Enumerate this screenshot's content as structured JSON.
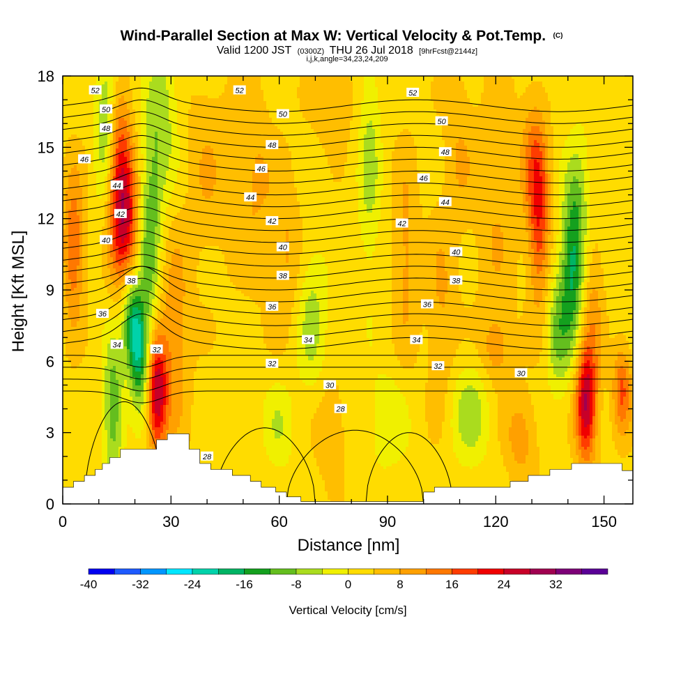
{
  "titles": {
    "main": "Wind-Parallel Section at Max W: Vertical Velocity & Pot.Temp.",
    "copyright": "(C)",
    "valid_a": "Valid 1200 JST",
    "valid_b": "(0300Z)",
    "valid_c": "THU 26 Jul 2018",
    "valid_d": "[9hrFcst@2144z]",
    "ijk": "i,j,k,angle=34,23,24,209"
  },
  "chart_data": {
    "type": "heatmap",
    "xlabel": "Distance [nm]",
    "ylabel": "Height [Kft MSL]",
    "xlim": [
      0,
      158
    ],
    "ylim": [
      0,
      18
    ],
    "xticks": [
      "0",
      "30",
      "60",
      "90",
      "120",
      "150"
    ],
    "yticks": [
      "0",
      "3",
      "6",
      "9",
      "12",
      "15",
      "18"
    ],
    "colorbar": {
      "label": "Vertical Velocity [cm/s]",
      "ticks": [
        "-40",
        "-32",
        "-24",
        "-16",
        "-8",
        "0",
        "8",
        "16",
        "24",
        "32"
      ],
      "levels": [
        -40,
        -36,
        -32,
        -28,
        -24,
        -20,
        -16,
        -12,
        -8,
        -4,
        0,
        4,
        8,
        12,
        16,
        20,
        24,
        28,
        32,
        36,
        40
      ],
      "colors": [
        "#0000f0",
        "#1e5aff",
        "#0096ff",
        "#00e6ff",
        "#00d2aa",
        "#00b464",
        "#14a01e",
        "#64be1e",
        "#aadc1e",
        "#f0f000",
        "#ffdc00",
        "#ffbe00",
        "#ffa000",
        "#ff7800",
        "#ff3c00",
        "#f00000",
        "#c80028",
        "#a00050",
        "#7d0078",
        "#5a0096"
      ]
    },
    "terrain_height_kft": [
      [
        0,
        0.7
      ],
      [
        3,
        0.7
      ],
      [
        3,
        0.95
      ],
      [
        6,
        0.95
      ],
      [
        6,
        1.2
      ],
      [
        9,
        1.2
      ],
      [
        9,
        1.45
      ],
      [
        11,
        1.45
      ],
      [
        11,
        1.7
      ],
      [
        13,
        1.7
      ],
      [
        13,
        1.95
      ],
      [
        16,
        1.95
      ],
      [
        16,
        2.3
      ],
      [
        26,
        2.3
      ],
      [
        26,
        2.7
      ],
      [
        29,
        2.7
      ],
      [
        29,
        2.95
      ],
      [
        35,
        2.95
      ],
      [
        35,
        2.3
      ],
      [
        38,
        2.3
      ],
      [
        38,
        1.7
      ],
      [
        41,
        1.7
      ],
      [
        41,
        1.45
      ],
      [
        47,
        1.45
      ],
      [
        47,
        1.2
      ],
      [
        52,
        1.2
      ],
      [
        52,
        0.95
      ],
      [
        55,
        0.95
      ],
      [
        55,
        0.7
      ],
      [
        59,
        0.7
      ],
      [
        59,
        0.5
      ],
      [
        62,
        0.5
      ],
      [
        62,
        0.3
      ],
      [
        66,
        0.3
      ],
      [
        66,
        0.1
      ],
      [
        100,
        0.1
      ],
      [
        100,
        0.5
      ],
      [
        103,
        0.5
      ],
      [
        103,
        0.7
      ],
      [
        124,
        0.7
      ],
      [
        124,
        0.95
      ],
      [
        129,
        0.95
      ],
      [
        129,
        1.2
      ],
      [
        135,
        1.2
      ],
      [
        135,
        1.45
      ],
      [
        141,
        1.45
      ],
      [
        141,
        1.7
      ],
      [
        155,
        1.7
      ],
      [
        155,
        1.4
      ],
      [
        158,
        1.4
      ]
    ],
    "w_features": [
      {
        "x": 17,
        "y": 11.5,
        "sx": 3,
        "sy": 2.2,
        "w": 22,
        "rot": 18
      },
      {
        "x": 16,
        "y": 14.5,
        "sx": 2.5,
        "sy": 2.0,
        "w": 12,
        "rot": 15
      },
      {
        "x": 3,
        "y": 10.8,
        "sx": 2,
        "sy": 2.2,
        "w": 14,
        "rot": 0
      },
      {
        "x": 12,
        "y": 16,
        "sx": 2,
        "sy": 2.5,
        "w": -12,
        "rot": 20
      },
      {
        "x": 20,
        "y": 7.2,
        "sx": 2.6,
        "sy": 1.6,
        "w": -27,
        "rot": 30
      },
      {
        "x": 24,
        "y": 11,
        "sx": 2.3,
        "sy": 3.5,
        "w": -14,
        "rot": 12
      },
      {
        "x": 14,
        "y": 4,
        "sx": 2,
        "sy": 2.2,
        "w": -14,
        "rot": 0
      },
      {
        "x": 26,
        "y": 4.7,
        "sx": 2,
        "sy": 1.7,
        "w": 26,
        "rot": 0
      },
      {
        "x": 31,
        "y": 7,
        "sx": 3,
        "sy": 3,
        "w": 9,
        "rot": 0
      },
      {
        "x": 28,
        "y": 16.5,
        "sx": 3,
        "sy": 2.5,
        "w": -8,
        "rot": 10
      },
      {
        "x": 85,
        "y": 14.5,
        "sx": 2.2,
        "sy": 3.6,
        "w": -8,
        "rot": 0
      },
      {
        "x": 69,
        "y": 7.8,
        "sx": 3,
        "sy": 2.2,
        "w": -8,
        "rot": 0
      },
      {
        "x": 53,
        "y": 13.5,
        "sx": 4,
        "sy": 3,
        "w": 6,
        "rot": 0
      },
      {
        "x": 40,
        "y": 14,
        "sx": 4,
        "sy": 3,
        "w": 5,
        "rot": 0
      },
      {
        "x": 62,
        "y": 10.5,
        "sx": 3,
        "sy": 2.5,
        "w": 6,
        "rot": 0
      },
      {
        "x": 95,
        "y": 10.5,
        "sx": 2.5,
        "sy": 3,
        "w": 7,
        "rot": 0
      },
      {
        "x": 105,
        "y": 8,
        "sx": 3,
        "sy": 3,
        "w": 6,
        "rot": 0
      },
      {
        "x": 120,
        "y": 12,
        "sx": 4,
        "sy": 4,
        "w": 5,
        "rot": 0
      },
      {
        "x": 113,
        "y": 3.8,
        "sx": 4,
        "sy": 1.5,
        "w": -9,
        "rot": 0
      },
      {
        "x": 127,
        "y": 2.8,
        "sx": 3,
        "sy": 1.3,
        "w": 8,
        "rot": 0
      },
      {
        "x": 90,
        "y": 3.5,
        "sx": 4,
        "sy": 1.5,
        "w": -6,
        "rot": 0
      },
      {
        "x": 60,
        "y": 3.3,
        "sx": 3,
        "sy": 1.4,
        "w": -6,
        "rot": 0
      },
      {
        "x": 74,
        "y": 3.2,
        "sx": 3,
        "sy": 1.4,
        "w": 6,
        "rot": 0
      },
      {
        "x": 145,
        "y": 4.2,
        "sx": 2,
        "sy": 1.7,
        "w": 26,
        "rot": 0
      },
      {
        "x": 155,
        "y": 4.8,
        "sx": 1.8,
        "sy": 1.3,
        "w": 14,
        "rot": 0
      },
      {
        "x": 141,
        "y": 9.6,
        "sx": 2.2,
        "sy": 2.4,
        "w": -17,
        "rot": 10
      },
      {
        "x": 143,
        "y": 12.5,
        "sx": 2.5,
        "sy": 2.2,
        "w": -8,
        "rot": 0
      },
      {
        "x": 132,
        "y": 12,
        "sx": 2,
        "sy": 2.5,
        "w": 16,
        "rot": 0
      },
      {
        "x": 130,
        "y": 14.5,
        "sx": 2.5,
        "sy": 2,
        "w": 8,
        "rot": 0
      },
      {
        "x": 147,
        "y": 8.5,
        "sx": 2,
        "sy": 2.5,
        "w": 7,
        "rot": 0
      },
      {
        "x": 120,
        "y": 6.5,
        "sx": 3,
        "sy": 1,
        "w": 7,
        "rot": 0
      },
      {
        "x": 137,
        "y": 7.2,
        "sx": 2,
        "sy": 1.8,
        "w": -10,
        "rot": 0
      },
      {
        "x": 75,
        "y": 17,
        "sx": 4,
        "sy": 1.3,
        "w": 6,
        "rot": 0
      },
      {
        "x": 110,
        "y": 15,
        "sx": 3,
        "sy": 2.5,
        "w": 5,
        "rot": 0
      }
    ],
    "theta_labels": [
      {
        "text": "52",
        "x": 9,
        "y": 17.4
      },
      {
        "text": "52",
        "x": 49,
        "y": 17.4
      },
      {
        "text": "52",
        "x": 97,
        "y": 17.3
      },
      {
        "text": "50",
        "x": 12,
        "y": 16.6
      },
      {
        "text": "50",
        "x": 61,
        "y": 16.4
      },
      {
        "text": "50",
        "x": 105,
        "y": 16.1
      },
      {
        "text": "48",
        "x": 12,
        "y": 15.8
      },
      {
        "text": "48",
        "x": 58,
        "y": 15.1
      },
      {
        "text": "48",
        "x": 106,
        "y": 14.8
      },
      {
        "text": "46",
        "x": 6,
        "y": 14.5
      },
      {
        "text": "46",
        "x": 55,
        "y": 14.1
      },
      {
        "text": "46",
        "x": 100,
        "y": 13.7
      },
      {
        "text": "44",
        "x": 15,
        "y": 13.4
      },
      {
        "text": "44",
        "x": 52,
        "y": 12.9
      },
      {
        "text": "44",
        "x": 106,
        "y": 12.7
      },
      {
        "text": "42",
        "x": 16,
        "y": 12.2
      },
      {
        "text": "42",
        "x": 58,
        "y": 11.9
      },
      {
        "text": "42",
        "x": 94,
        "y": 11.8
      },
      {
        "text": "40",
        "x": 12,
        "y": 11.1
      },
      {
        "text": "40",
        "x": 61,
        "y": 10.8
      },
      {
        "text": "40",
        "x": 109,
        "y": 10.6
      },
      {
        "text": "38",
        "x": 19,
        "y": 9.4
      },
      {
        "text": "38",
        "x": 61,
        "y": 9.6
      },
      {
        "text": "38",
        "x": 109,
        "y": 9.4
      },
      {
        "text": "36",
        "x": 11,
        "y": 8
      },
      {
        "text": "36",
        "x": 58,
        "y": 8.3
      },
      {
        "text": "36",
        "x": 101,
        "y": 8.4
      },
      {
        "text": "34",
        "x": 15,
        "y": 6.7
      },
      {
        "text": "34",
        "x": 68,
        "y": 6.9
      },
      {
        "text": "34",
        "x": 98,
        "y": 6.9
      },
      {
        "text": "32",
        "x": 26,
        "y": 6.5
      },
      {
        "text": "32",
        "x": 58,
        "y": 5.9
      },
      {
        "text": "32",
        "x": 104,
        "y": 5.8
      },
      {
        "text": "30",
        "x": 74,
        "y": 5
      },
      {
        "text": "30",
        "x": 127,
        "y": 5.5
      },
      {
        "text": "28",
        "x": 77,
        "y": 4
      },
      {
        "text": "28",
        "x": 40,
        "y": 2
      }
    ]
  }
}
